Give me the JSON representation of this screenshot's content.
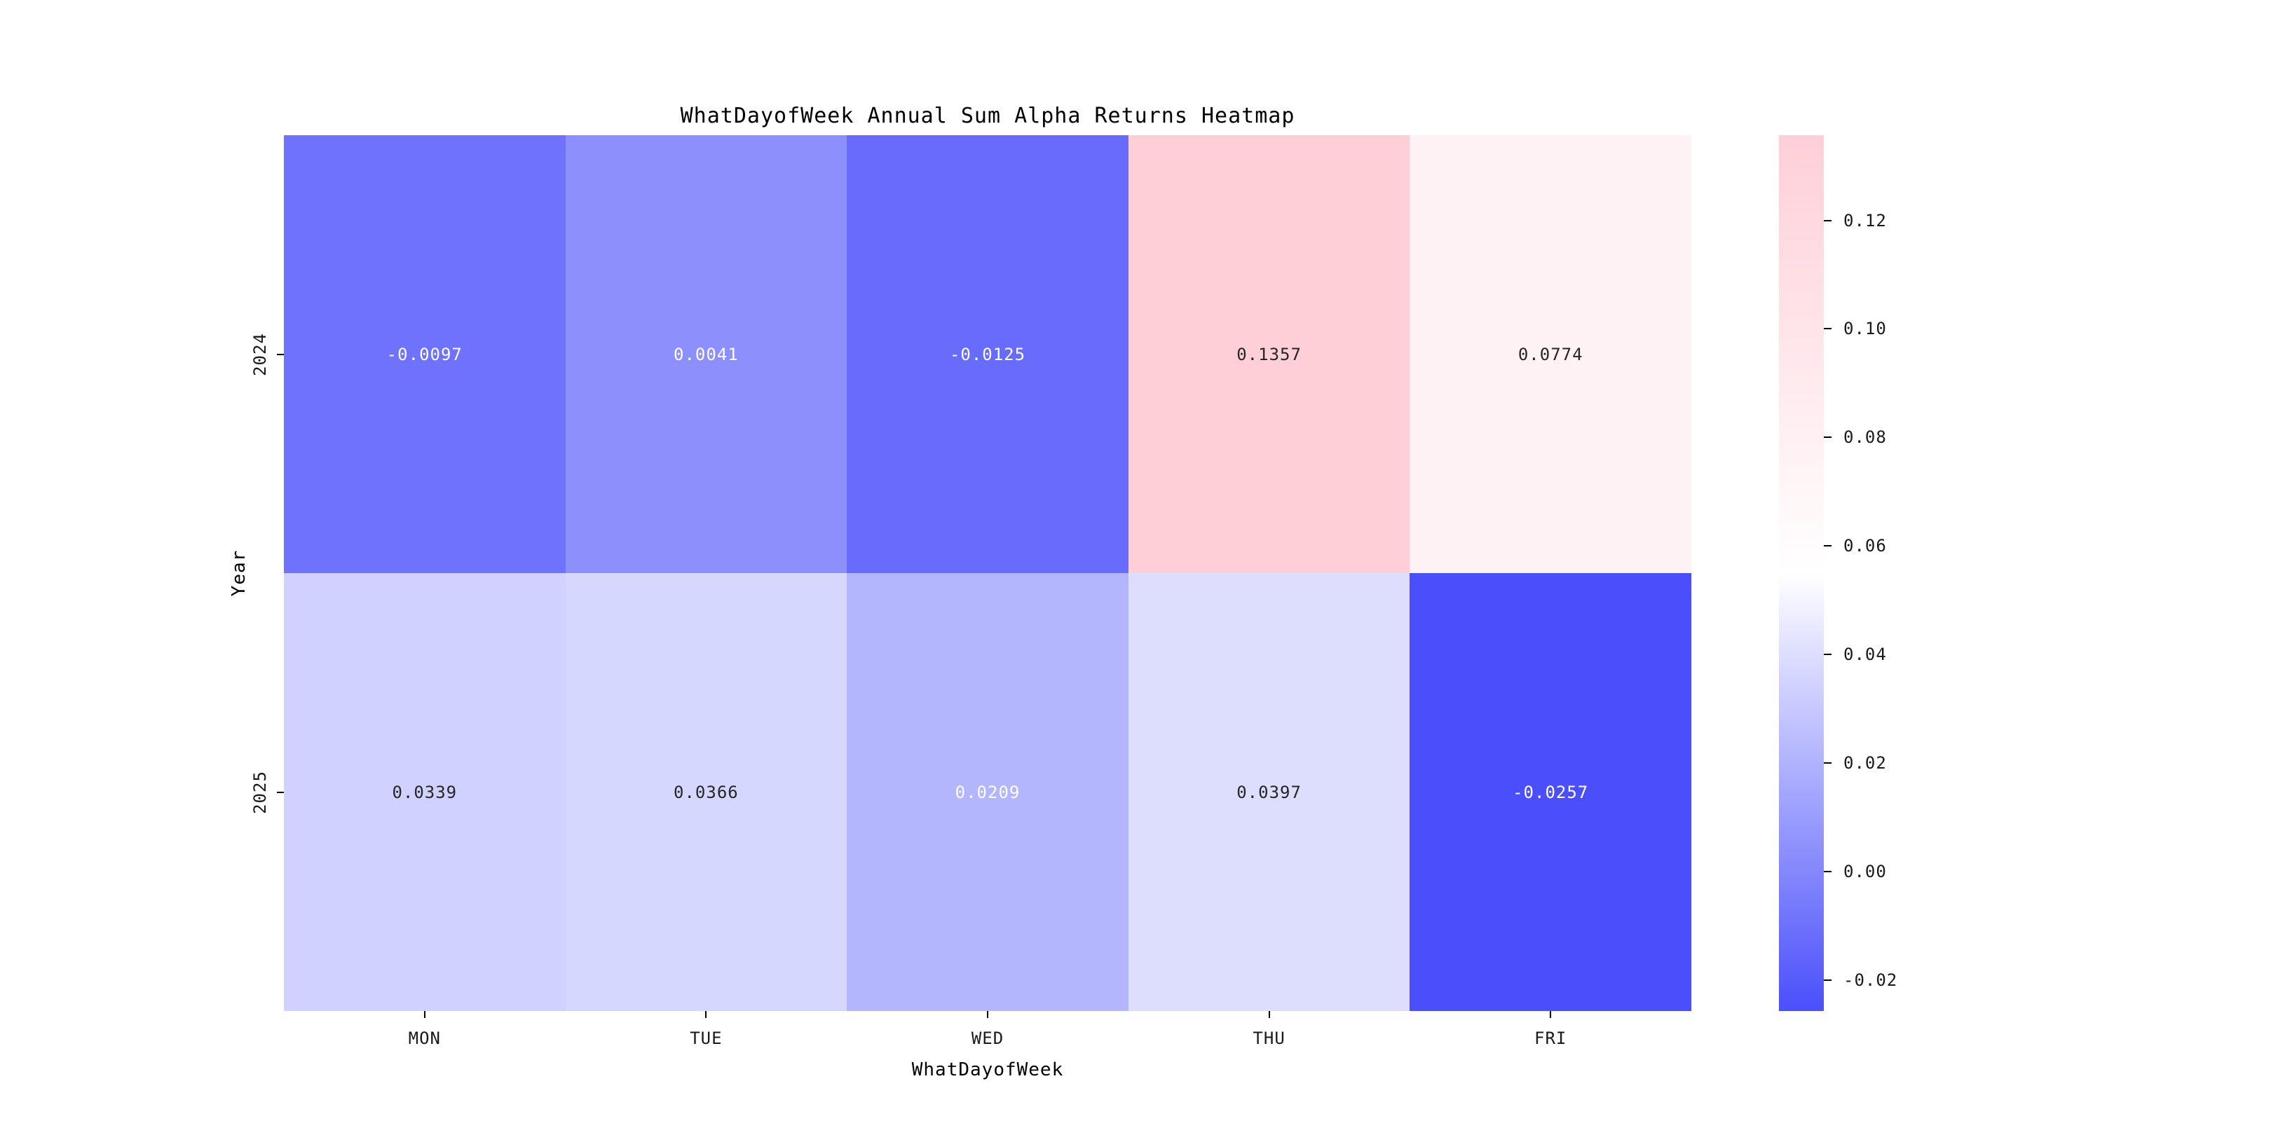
{
  "chart_data": {
    "type": "heatmap",
    "title": "WhatDayofWeek Annual Sum Alpha Returns Heatmap",
    "xlabel": "WhatDayofWeek",
    "ylabel": "Year",
    "columns": [
      "MON",
      "TUE",
      "WED",
      "THU",
      "FRI"
    ],
    "rows": [
      "2024",
      "2025"
    ],
    "values": [
      [
        -0.0097,
        0.0041,
        -0.0125,
        0.1357,
        0.0774
      ],
      [
        0.0339,
        0.0366,
        0.0209,
        0.0397,
        -0.0257
      ]
    ],
    "cell_labels": [
      [
        "-0.0097",
        "0.0041",
        "-0.0125",
        "0.1357",
        "0.0774"
      ],
      [
        "0.0339",
        "0.0366",
        "0.0209",
        "0.0397",
        "-0.0257"
      ]
    ],
    "annotation_text_colors": [
      [
        "#ffffff",
        "#ffffff",
        "#ffffff",
        "#262626",
        "#262626"
      ],
      [
        "#262626",
        "#262626",
        "#ffffff",
        "#262626",
        "#ffffff"
      ]
    ],
    "colormap": {
      "vmin": -0.0257,
      "vmax": 0.1357,
      "center": 0.055,
      "min_color": "#4A4FFB",
      "mid_color": "#FFFFFF",
      "max_color": "#FFCFD8"
    },
    "colorbar": {
      "tick_labels": [
        "0.12",
        "0.10",
        "0.08",
        "0.06",
        "0.04",
        "0.02",
        "0.00",
        "-0.02"
      ],
      "tick_values": [
        0.12,
        0.1,
        0.08,
        0.06,
        0.04,
        0.02,
        0.0,
        -0.02
      ],
      "position": "right"
    },
    "grid": false,
    "legend": false,
    "background_color": "#ffffff"
  }
}
